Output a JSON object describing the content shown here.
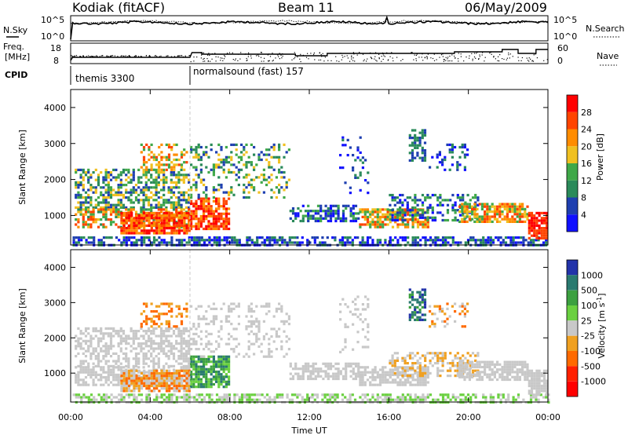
{
  "header": {
    "station": "Kodiak (fitACF)",
    "beam": "Beam 11",
    "date": "06/May/2009"
  },
  "panels": {
    "nsky": {
      "left_label": "N.Sky",
      "right_label": "N.Search",
      "left_ticks": [
        "10^5",
        "10^0"
      ],
      "right_ticks": [
        "10^5",
        "10^0"
      ]
    },
    "freq": {
      "left_label_line1": "Freq.",
      "left_label_line2": "[MHz]",
      "right_label": "Nave",
      "left_ticks": [
        "18",
        "8"
      ],
      "right_ticks": [
        "60",
        "0"
      ]
    },
    "cpid": {
      "label": "CPID",
      "segments": [
        {
          "start_hour": 0.0,
          "end_hour": 6.0,
          "name": "themis 3300"
        },
        {
          "start_hour": 6.0,
          "end_hour": 24.0,
          "name": "normalsound (fast) 157"
        }
      ]
    }
  },
  "chart_data": [
    {
      "type": "heatmap",
      "id": "power",
      "ylabel": "Slant Range [km]",
      "xlabel": "Time UT",
      "ylim": [
        180,
        4500
      ],
      "xlim": [
        0,
        24
      ],
      "yticks": [
        1000,
        2000,
        3000,
        4000
      ],
      "colorbar": {
        "label": "Power [dB]",
        "ticks": [
          "4",
          "8",
          "12",
          "16",
          "20",
          "24",
          "28"
        ],
        "colors": [
          "#1010ff",
          "#1e3fb0",
          "#2a8a5a",
          "#3fa848",
          "#f0c020",
          "#ff8c00",
          "#ff4400",
          "#ff0000"
        ]
      }
    },
    {
      "type": "heatmap",
      "id": "velocity",
      "ylabel": "Slant Range [km]",
      "xlabel": "Time UT",
      "ylim": [
        180,
        4500
      ],
      "xlim": [
        0,
        24
      ],
      "yticks": [
        1000,
        2000,
        3000,
        4000
      ],
      "colorbar": {
        "label": "Velocity [m s^-1]",
        "ticks": [
          "1000",
          "500",
          "100",
          "25",
          "-25",
          "-100",
          "-500",
          "-1000"
        ],
        "colors": [
          "#2233aa",
          "#2a7a70",
          "#3ca040",
          "#6ad040",
          "#c8c8c8",
          "#f0a020",
          "#ff6a00",
          "#ff2000",
          "#ff0000"
        ]
      }
    }
  ],
  "xaxis": {
    "ticks": [
      "00:00",
      "04:00",
      "08:00",
      "12:00",
      "16:00",
      "20:00",
      "00:00"
    ],
    "label": "Time UT"
  }
}
